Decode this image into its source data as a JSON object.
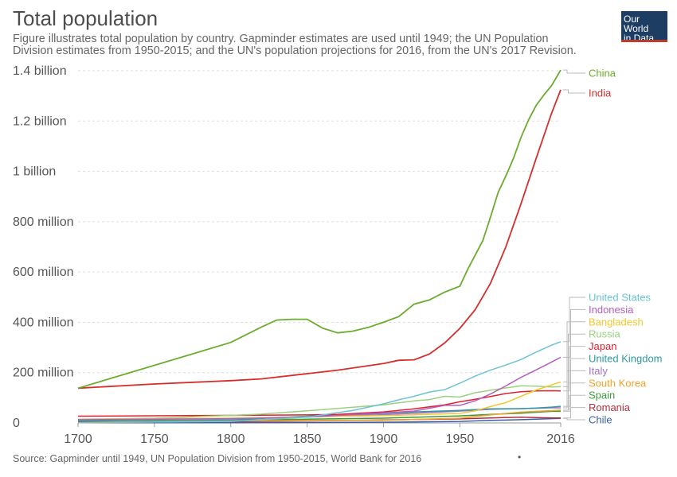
{
  "header": {
    "title": "Total population",
    "subtitle": "Figure illustrates total population by country. Gapminder estimates are used until 1949; the UN Population Division estimates from 1950-2015; and the UN's population projections for 2016, from the UN's 2017 Revision.",
    "logo_line1": "Our World",
    "logo_line2": "in Data"
  },
  "footer": {
    "source": "Source: Gapminder until 1949, UN Population Division from 1950-2015, World Bank for 2016",
    "dot": "•"
  },
  "chart_data": {
    "type": "line",
    "xlim": [
      1700,
      2016
    ],
    "ylim": [
      0,
      1400000000
    ],
    "x_ticks": [
      {
        "value": 1700,
        "label": "1700"
      },
      {
        "value": 1750,
        "label": "1750"
      },
      {
        "value": 1800,
        "label": "1800"
      },
      {
        "value": 1850,
        "label": "1850"
      },
      {
        "value": 1900,
        "label": "1900"
      },
      {
        "value": 1950,
        "label": "1950"
      },
      {
        "value": 2016,
        "label": "2016"
      }
    ],
    "y_ticks": [
      {
        "value": 0,
        "label": "0"
      },
      {
        "value": 200000000,
        "label": "200 million"
      },
      {
        "value": 400000000,
        "label": "400 million"
      },
      {
        "value": 600000000,
        "label": "600 million"
      },
      {
        "value": 800000000,
        "label": "800 million"
      },
      {
        "value": 1000000000,
        "label": "1 billion"
      },
      {
        "value": 1200000000,
        "label": "1.2 billion"
      },
      {
        "value": 1400000000,
        "label": "1.4 billion"
      }
    ],
    "grid": "horizontal dashed",
    "legend": "right, end-of-line labels",
    "series": [
      {
        "name": "China",
        "color": "#6aac2d",
        "points": [
          [
            1700,
            138000000
          ],
          [
            1800,
            320000000
          ],
          [
            1820,
            381000000
          ],
          [
            1830,
            409000000
          ],
          [
            1840,
            412000000
          ],
          [
            1850,
            412000000
          ],
          [
            1860,
            377000000
          ],
          [
            1870,
            358000000
          ],
          [
            1880,
            365000000
          ],
          [
            1890,
            380000000
          ],
          [
            1900,
            400000000
          ],
          [
            1910,
            423000000
          ],
          [
            1920,
            472000000
          ],
          [
            1930,
            489000000
          ],
          [
            1940,
            520000000
          ],
          [
            1950,
            544000000
          ],
          [
            1955,
            609000000
          ],
          [
            1960,
            667000000
          ],
          [
            1965,
            725000000
          ],
          [
            1970,
            818000000
          ],
          [
            1975,
            916000000
          ],
          [
            1980,
            981000000
          ],
          [
            1985,
            1051000000
          ],
          [
            1990,
            1135000000
          ],
          [
            1995,
            1205000000
          ],
          [
            2000,
            1263000000
          ],
          [
            2005,
            1304000000
          ],
          [
            2010,
            1341000000
          ],
          [
            2016,
            1403000000
          ]
        ]
      },
      {
        "name": "India",
        "color": "#d62d2d",
        "points": [
          [
            1700,
            138000000
          ],
          [
            1750,
            155000000
          ],
          [
            1800,
            168000000
          ],
          [
            1820,
            175000000
          ],
          [
            1850,
            196000000
          ],
          [
            1870,
            210000000
          ],
          [
            1900,
            236000000
          ],
          [
            1910,
            249000000
          ],
          [
            1920,
            251000000
          ],
          [
            1930,
            274000000
          ],
          [
            1940,
            318000000
          ],
          [
            1950,
            376000000
          ],
          [
            1960,
            450000000
          ],
          [
            1970,
            555000000
          ],
          [
            1980,
            699000000
          ],
          [
            1990,
            871000000
          ],
          [
            2000,
            1053000000
          ],
          [
            2010,
            1231000000
          ],
          [
            2016,
            1324000000
          ]
        ]
      },
      {
        "name": "United States",
        "color": "#6bc3d1",
        "points": [
          [
            1700,
            1000000
          ],
          [
            1800,
            6000000
          ],
          [
            1850,
            23000000
          ],
          [
            1880,
            50000000
          ],
          [
            1900,
            76000000
          ],
          [
            1910,
            92000000
          ],
          [
            1920,
            106000000
          ],
          [
            1930,
            123000000
          ],
          [
            1940,
            132000000
          ],
          [
            1950,
            158000000
          ],
          [
            1960,
            186000000
          ],
          [
            1970,
            210000000
          ],
          [
            1980,
            230000000
          ],
          [
            1990,
            252000000
          ],
          [
            2000,
            282000000
          ],
          [
            2010,
            309000000
          ],
          [
            2016,
            323000000
          ]
        ]
      },
      {
        "name": "Indonesia",
        "color": "#b45fbf",
        "points": [
          [
            1700,
            13000000
          ],
          [
            1800,
            17000000
          ],
          [
            1850,
            23000000
          ],
          [
            1900,
            40000000
          ],
          [
            1920,
            47000000
          ],
          [
            1940,
            70000000
          ],
          [
            1950,
            70000000
          ],
          [
            1960,
            88000000
          ],
          [
            1970,
            115000000
          ],
          [
            1980,
            147000000
          ],
          [
            1990,
            181000000
          ],
          [
            2000,
            211000000
          ],
          [
            2010,
            242000000
          ],
          [
            2016,
            261000000
          ]
        ]
      },
      {
        "name": "Bangladesh",
        "color": "#f2c62f",
        "points": [
          [
            1700,
            14000000
          ],
          [
            1800,
            19000000
          ],
          [
            1850,
            24000000
          ],
          [
            1900,
            29000000
          ],
          [
            1950,
            38000000
          ],
          [
            1960,
            48000000
          ],
          [
            1970,
            65000000
          ],
          [
            1980,
            81000000
          ],
          [
            1990,
            106000000
          ],
          [
            2000,
            131000000
          ],
          [
            2010,
            151000000
          ],
          [
            2016,
            163000000
          ]
        ]
      },
      {
        "name": "Russia",
        "color": "#9bd17f",
        "points": [
          [
            1700,
            15000000
          ],
          [
            1750,
            19000000
          ],
          [
            1800,
            30000000
          ],
          [
            1820,
            35000000
          ],
          [
            1850,
            48000000
          ],
          [
            1900,
            72000000
          ],
          [
            1920,
            88000000
          ],
          [
            1930,
            93000000
          ],
          [
            1940,
            106000000
          ],
          [
            1950,
            103000000
          ],
          [
            1960,
            120000000
          ],
          [
            1970,
            130000000
          ],
          [
            1980,
            139000000
          ],
          [
            1990,
            148000000
          ],
          [
            2000,
            146000000
          ],
          [
            2010,
            143000000
          ],
          [
            2016,
            144000000
          ]
        ]
      },
      {
        "name": "Japan",
        "color": "#e0202f",
        "points": [
          [
            1700,
            27000000
          ],
          [
            1800,
            30000000
          ],
          [
            1850,
            32000000
          ],
          [
            1870,
            34000000
          ],
          [
            1900,
            44000000
          ],
          [
            1920,
            56000000
          ],
          [
            1940,
            72000000
          ],
          [
            1950,
            84000000
          ],
          [
            1960,
            94000000
          ],
          [
            1970,
            105000000
          ],
          [
            1980,
            117000000
          ],
          [
            1990,
            124000000
          ],
          [
            2000,
            127000000
          ],
          [
            2010,
            128000000
          ],
          [
            2016,
            127000000
          ]
        ]
      },
      {
        "name": "United Kingdom",
        "color": "#2e9aa0",
        "points": [
          [
            1700,
            8000000
          ],
          [
            1800,
            12000000
          ],
          [
            1850,
            27000000
          ],
          [
            1900,
            38000000
          ],
          [
            1920,
            44000000
          ],
          [
            1950,
            50000000
          ],
          [
            1970,
            56000000
          ],
          [
            1990,
            57000000
          ],
          [
            2000,
            59000000
          ],
          [
            2010,
            63000000
          ],
          [
            2016,
            66000000
          ]
        ]
      },
      {
        "name": "Italy",
        "color": "#a873c9",
        "points": [
          [
            1700,
            13000000
          ],
          [
            1800,
            18000000
          ],
          [
            1850,
            24000000
          ],
          [
            1900,
            33000000
          ],
          [
            1950,
            47000000
          ],
          [
            1970,
            54000000
          ],
          [
            1990,
            57000000
          ],
          [
            2010,
            60000000
          ],
          [
            2016,
            60000000
          ]
        ]
      },
      {
        "name": "South Korea",
        "color": "#f0a32c",
        "points": [
          [
            1700,
            7000000
          ],
          [
            1800,
            9000000
          ],
          [
            1900,
            10000000
          ],
          [
            1950,
            19000000
          ],
          [
            1970,
            32000000
          ],
          [
            1990,
            43000000
          ],
          [
            2010,
            49000000
          ],
          [
            2016,
            51000000
          ]
        ]
      },
      {
        "name": "Spain",
        "color": "#3a9a3a",
        "points": [
          [
            1700,
            8000000
          ],
          [
            1800,
            11000000
          ],
          [
            1850,
            15000000
          ],
          [
            1900,
            19000000
          ],
          [
            1950,
            28000000
          ],
          [
            1970,
            34000000
          ],
          [
            1990,
            39000000
          ],
          [
            2010,
            46000000
          ],
          [
            2016,
            46000000
          ]
        ]
      },
      {
        "name": "Romania",
        "color": "#b0303a",
        "points": [
          [
            1700,
            3000000
          ],
          [
            1800,
            5000000
          ],
          [
            1850,
            8000000
          ],
          [
            1900,
            12000000
          ],
          [
            1950,
            16000000
          ],
          [
            1970,
            20000000
          ],
          [
            1990,
            23000000
          ],
          [
            2010,
            20000000
          ],
          [
            2016,
            20000000
          ]
        ]
      },
      {
        "name": "Chile",
        "color": "#3a5fa8",
        "points": [
          [
            1700,
            1000000
          ],
          [
            1800,
            1000000
          ],
          [
            1850,
            1500000
          ],
          [
            1900,
            3000000
          ],
          [
            1950,
            6000000
          ],
          [
            1970,
            10000000
          ],
          [
            1990,
            13000000
          ],
          [
            2010,
            17000000
          ],
          [
            2016,
            18000000
          ]
        ]
      }
    ]
  }
}
